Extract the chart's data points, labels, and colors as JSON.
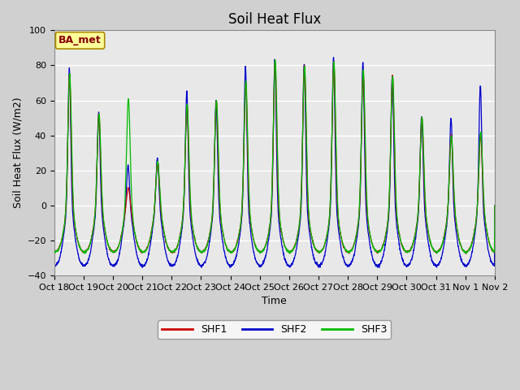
{
  "title": "Soil Heat Flux",
  "ylabel": "Soil Heat Flux (W/m2)",
  "xlabel": "Time",
  "ylim": [
    -40,
    100
  ],
  "series_colors": {
    "SHF1": "#cc0000",
    "SHF2": "#0000cc",
    "SHF3": "#00bb00"
  },
  "background_color": "#e8e8e8",
  "grid_color": "#ffffff",
  "annotation_text": "BA_met",
  "annotation_bg": "#ffff99",
  "annotation_border": "#aa8800",
  "annotation_text_color": "#880000",
  "n_days": 15,
  "yticks": [
    -40,
    -20,
    0,
    20,
    40,
    60,
    80,
    100
  ],
  "xtick_labels": [
    "Oct 18",
    "Oct 19",
    "Oct 20",
    "Oct 21",
    "Oct 22",
    "Oct 23",
    "Oct 24",
    "Oct 25",
    "Oct 26",
    "Oct 27",
    "Oct 28",
    "Oct 29",
    "Oct 30",
    "Oct 31",
    "Nov 1",
    "Nov 2"
  ],
  "title_fontsize": 12,
  "axis_fontsize": 9,
  "tick_fontsize": 8,
  "legend_fontsize": 9,
  "day_peaks_shf1": [
    75,
    52,
    10,
    25,
    57,
    60,
    70,
    82,
    80,
    82,
    77,
    74,
    50,
    40,
    40
  ],
  "day_peaks_shf2": [
    78,
    53,
    23,
    27,
    65,
    60,
    79,
    83,
    81,
    84,
    82,
    74,
    51,
    50,
    69
  ],
  "day_peaks_shf3": [
    75,
    52,
    61,
    25,
    58,
    60,
    71,
    83,
    80,
    82,
    77,
    74,
    50,
    40,
    42
  ],
  "night_min_shf1": -27,
  "night_min_shf2": -35,
  "night_min_shf3": -27
}
